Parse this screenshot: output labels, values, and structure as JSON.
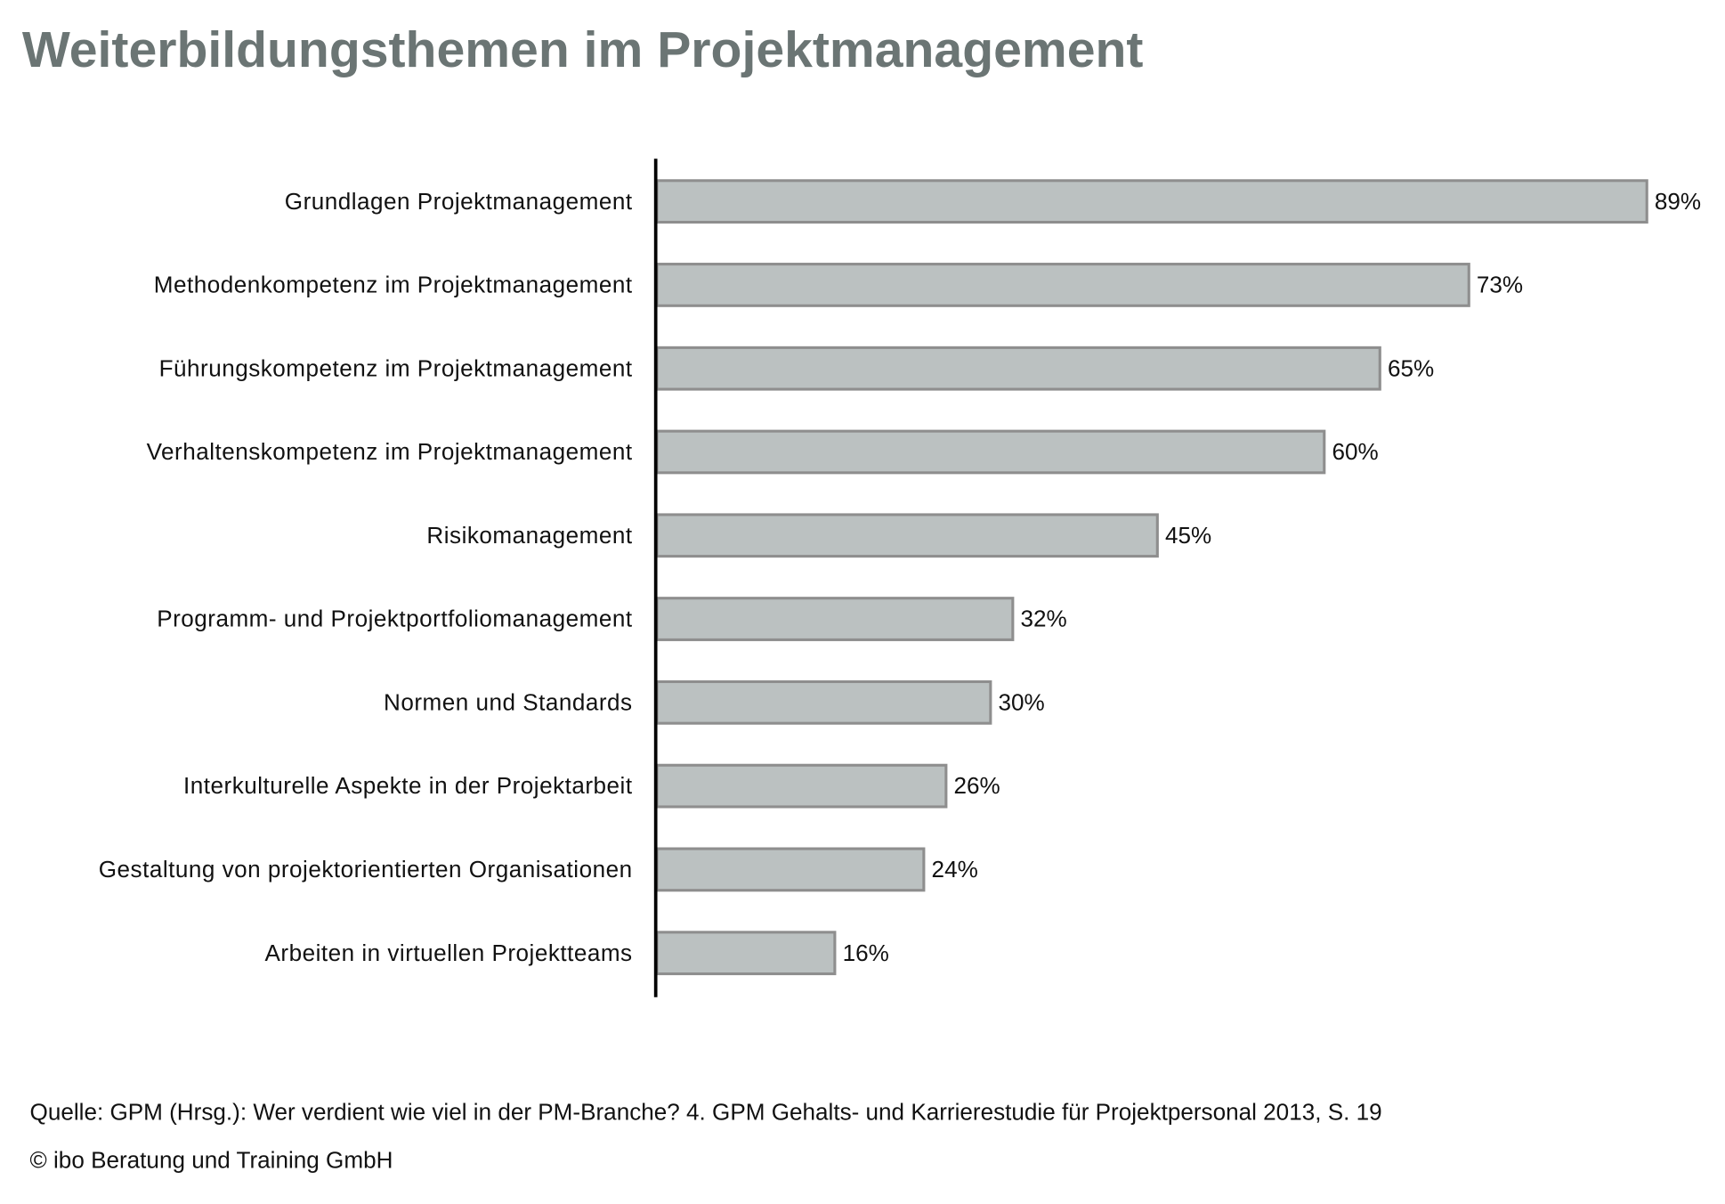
{
  "chart_data": {
    "type": "bar",
    "orientation": "horizontal",
    "title": "Weiterbildungsthemen im Projektmanagement",
    "categories": [
      "Grundlagen Projektmanagement",
      "Methodenkompetenz im Projektmanagement",
      "Führungskompetenz im Projektmanagement",
      "Verhaltenskompetenz im Projektmanagement",
      "Risikomanagement",
      "Programm- und Projektportfoliomanagement",
      "Normen und Standards",
      "Interkulturelle Aspekte in der Projektarbeit",
      "Gestaltung von projektorientierten Organisationen",
      "Arbeiten in virtuellen Projektteams"
    ],
    "values": [
      89,
      73,
      65,
      60,
      45,
      32,
      30,
      26,
      24,
      16
    ],
    "value_labels": [
      "89%",
      "73%",
      "65%",
      "60%",
      "45%",
      "32%",
      "30%",
      "26%",
      "24%",
      "16%"
    ],
    "xlim": [
      0,
      100
    ],
    "grid": false,
    "bar_color": "#bbc1c1",
    "bar_border_color": "#8e8e8e",
    "title_color": "#6b7574"
  },
  "footer": {
    "source": "Quelle: GPM (Hrsg.): Wer verdient wie viel in der PM-Branche? 4. GPM Gehalts- und Karrierestudie für Projektpersonal 2013, S. 19",
    "copyright": "© ibo Beratung und Training GmbH"
  }
}
